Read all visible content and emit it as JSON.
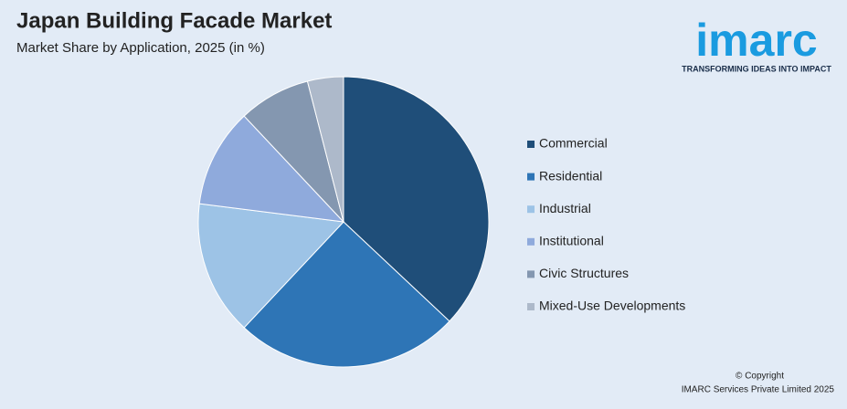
{
  "chart_data": {
    "type": "pie",
    "title": "Japan Building Facade Market",
    "subtitle": "Market Share by Application, 2025 (in %)",
    "categories": [
      "Commercial",
      "Residential",
      "Industrial",
      "Institutional",
      "Civic Structures",
      "Mixed-Use Developments"
    ],
    "values": [
      37,
      25,
      15,
      11,
      8,
      4
    ],
    "colors": [
      "#1f4e79",
      "#2e75b6",
      "#9dc3e6",
      "#8faadc",
      "#8497b0",
      "#adb9ca"
    ],
    "legend": "right",
    "brand": "imarc",
    "brand_tagline": "TRANSFORMING IDEAS INTO IMPACT",
    "footer": [
      "© Copyright",
      "IMARC Services Private Limited 2025"
    ]
  }
}
